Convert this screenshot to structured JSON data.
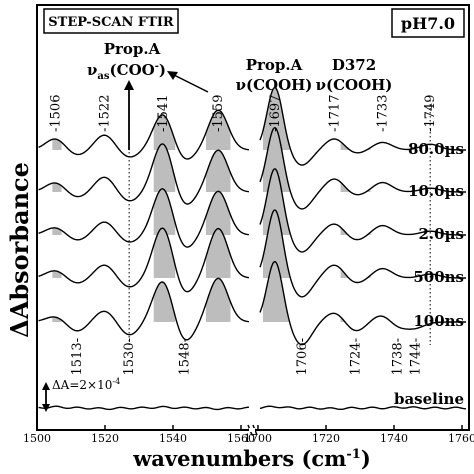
{
  "chart_data": {
    "type": "line",
    "title_box": "STEP-SCAN FTIR",
    "ph_box": "pH7.0",
    "xlabel": "wavenumbers (cm",
    "xlabel_sup": "-1",
    "xlabel_close": ")",
    "ylabel": "ΔAbsorbance",
    "x_ticks_left": [
      "1500",
      "1520",
      "1540",
      "1560"
    ],
    "x_ticks_right": [
      "1700",
      "1720",
      "1740",
      "1760"
    ],
    "x_tick_values_left": [
      1500,
      1520,
      1540,
      1560
    ],
    "x_tick_values_right": [
      1700,
      1720,
      1740,
      1760
    ],
    "xlim_left": [
      1500,
      1570
    ],
    "xlim_right": [
      1690,
      1762
    ],
    "scale_bar": "ΔA=2×10",
    "scale_bar_sup": "-4",
    "annotations": {
      "propA_asym_l1": "Prop.A",
      "propA_asym_l2": "ν",
      "propA_asym_sub": "as",
      "propA_asym_l3": "(COO",
      "propA_asym_sup": "-",
      "propA_asym_close": ")",
      "propA_cooh_l1": "Prop.A",
      "propA_cooh_l2": "ν(COOH)",
      "d372_l1": "D372",
      "d372_l2": "ν(COOH)"
    },
    "peak_labels_up": [
      {
        "x": 1506,
        "label": "1506"
      },
      {
        "x": 1522,
        "label": "1522"
      },
      {
        "x": 1541,
        "label": "1541"
      },
      {
        "x": 1559,
        "label": "1559"
      },
      {
        "x": 1697,
        "label": "1697"
      },
      {
        "x": 1717,
        "label": "1717"
      },
      {
        "x": 1733,
        "label": "1733"
      },
      {
        "x": 1749,
        "label": "1749"
      }
    ],
    "peak_labels_down": [
      {
        "x": 1513,
        "label": "1513"
      },
      {
        "x": 1530,
        "label": "1530"
      },
      {
        "x": 1548,
        "label": "1548"
      },
      {
        "x": 1706,
        "label": "1706"
      },
      {
        "x": 1724,
        "label": "1724"
      },
      {
        "x": 1738,
        "label": "1738"
      },
      {
        "x": 1744,
        "label": "1744"
      }
    ],
    "series": [
      {
        "name": "80.0µs",
        "peaks": [
          {
            "x": 1506,
            "a": 0.6
          },
          {
            "x": 1513,
            "a": -0.3
          },
          {
            "x": 1522,
            "a": 0.8
          },
          {
            "x": 1530,
            "a": -0.4
          },
          {
            "x": 1541,
            "a": 1.9
          },
          {
            "x": 1548,
            "a": -0.6
          },
          {
            "x": 1559,
            "a": 2.1
          },
          {
            "x": 1697,
            "a": 3.3
          },
          {
            "x": 1706,
            "a": -0.8
          },
          {
            "x": 1717,
            "a": 0.6
          },
          {
            "x": 1724,
            "a": -0.2
          },
          {
            "x": 1733,
            "a": 0.4
          },
          {
            "x": 1749,
            "a": 0.3
          }
        ]
      },
      {
        "name": "10.0µs",
        "peaks": [
          {
            "x": 1506,
            "a": 0.5
          },
          {
            "x": 1513,
            "a": -0.3
          },
          {
            "x": 1522,
            "a": 0.8
          },
          {
            "x": 1530,
            "a": -0.5
          },
          {
            "x": 1541,
            "a": 2.6
          },
          {
            "x": 1548,
            "a": -0.8
          },
          {
            "x": 1559,
            "a": 2.2
          },
          {
            "x": 1697,
            "a": 3.4
          },
          {
            "x": 1706,
            "a": -0.9
          },
          {
            "x": 1717,
            "a": 0.7
          },
          {
            "x": 1724,
            "a": -0.2
          },
          {
            "x": 1733,
            "a": 0.5
          },
          {
            "x": 1749,
            "a": 0.2
          }
        ]
      },
      {
        "name": "2.0µs",
        "peaks": [
          {
            "x": 1506,
            "a": 0.4
          },
          {
            "x": 1513,
            "a": -0.3
          },
          {
            "x": 1522,
            "a": 0.7
          },
          {
            "x": 1530,
            "a": -0.4
          },
          {
            "x": 1541,
            "a": 2.5
          },
          {
            "x": 1548,
            "a": -0.8
          },
          {
            "x": 1559,
            "a": 2.3
          },
          {
            "x": 1697,
            "a": 3.5
          },
          {
            "x": 1706,
            "a": -0.9
          },
          {
            "x": 1717,
            "a": 0.6
          },
          {
            "x": 1724,
            "a": -0.3
          },
          {
            "x": 1733,
            "a": 0.5
          },
          {
            "x": 1749,
            "a": 0.2
          }
        ]
      },
      {
        "name": "500ns",
        "peaks": [
          {
            "x": 1506,
            "a": 0.4
          },
          {
            "x": 1513,
            "a": -0.3
          },
          {
            "x": 1522,
            "a": 0.7
          },
          {
            "x": 1530,
            "a": -0.5
          },
          {
            "x": 1541,
            "a": 2.7
          },
          {
            "x": 1548,
            "a": -0.9
          },
          {
            "x": 1559,
            "a": 2.6
          },
          {
            "x": 1697,
            "a": 3.6
          },
          {
            "x": 1706,
            "a": -1.0
          },
          {
            "x": 1717,
            "a": 0.7
          },
          {
            "x": 1724,
            "a": -0.3
          },
          {
            "x": 1733,
            "a": 0.5
          },
          {
            "x": 1749,
            "a": 0.2
          }
        ]
      },
      {
        "name": "100ns",
        "peaks": [
          {
            "x": 1506,
            "a": 0.3
          },
          {
            "x": 1513,
            "a": -0.5
          },
          {
            "x": 1522,
            "a": 0.6
          },
          {
            "x": 1530,
            "a": -0.7
          },
          {
            "x": 1541,
            "a": 2.2
          },
          {
            "x": 1548,
            "a": -1.1
          },
          {
            "x": 1559,
            "a": 2.3
          },
          {
            "x": 1697,
            "a": 3.2
          },
          {
            "x": 1706,
            "a": -1.2
          },
          {
            "x": 1717,
            "a": 0.5
          },
          {
            "x": 1724,
            "a": -0.5
          },
          {
            "x": 1733,
            "a": 0.4
          },
          {
            "x": 1738,
            "a": -0.3
          },
          {
            "x": 1744,
            "a": -0.3
          }
        ]
      },
      {
        "name": "baseline",
        "peaks": [
          {
            "x": 1506,
            "a": 0.15
          },
          {
            "x": 1522,
            "a": -0.1
          },
          {
            "x": 1541,
            "a": 0.12
          },
          {
            "x": 1559,
            "a": -0.1
          },
          {
            "x": 1697,
            "a": 0.2
          },
          {
            "x": 1717,
            "a": -0.1
          },
          {
            "x": 1740,
            "a": 0.1
          }
        ]
      }
    ],
    "shaded_bands": [
      [
        1505,
        1508
      ],
      [
        1538,
        1545
      ],
      [
        1555,
        1563
      ],
      [
        1693,
        1702
      ],
      [
        1719,
        1729
      ]
    ],
    "dotted_guides": [
      1530,
      1749
    ]
  }
}
